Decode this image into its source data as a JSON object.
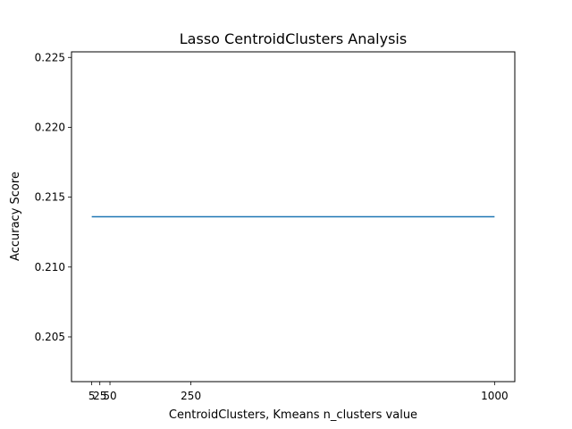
{
  "chart_data": {
    "type": "line",
    "title": "Lasso CentroidClusters Analysis",
    "xlabel": "CentroidClusters, Kmeans n_clusters value",
    "ylabel": "Accuracy Score",
    "x": [
      5,
      25,
      50,
      250,
      1000
    ],
    "x_tick_labels": [
      "5",
      "25",
      "50",
      "250",
      "1000"
    ],
    "series": [
      {
        "values": [
          0.2136,
          0.2136,
          0.2136,
          0.2136,
          0.2136
        ],
        "color": "#1f77b4"
      }
    ],
    "xlim": [
      -45,
      1050
    ],
    "ylim": [
      0.2018,
      0.2254
    ],
    "y_ticks": [
      0.205,
      0.21,
      0.215,
      0.22,
      0.225
    ],
    "y_tick_labels": [
      "0.205",
      "0.210",
      "0.215",
      "0.220",
      "0.225"
    ],
    "grid": false,
    "legend": "none"
  }
}
